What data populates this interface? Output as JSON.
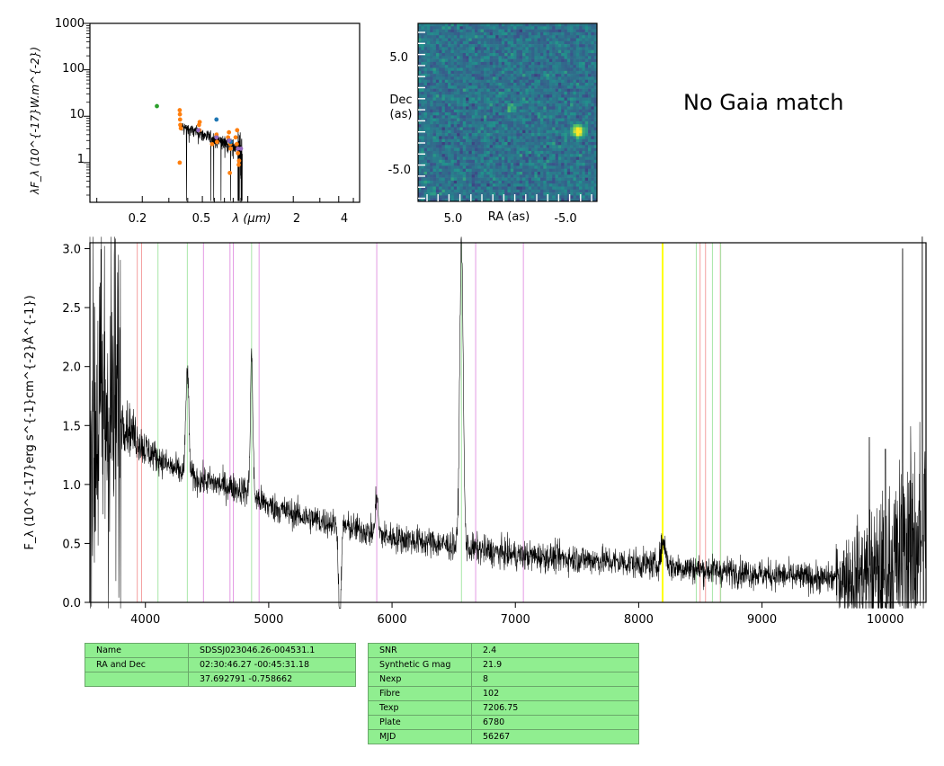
{
  "sed": {
    "ylabel": "λF_λ (10^{-17}W.m^{-2})",
    "xlabel": "λ (μm)",
    "ytick_labels": [
      "1000",
      "100",
      "10",
      "1"
    ],
    "xtick_labels": [
      "0.2",
      "0.5",
      "2",
      "4"
    ],
    "points_green": [
      [
        0.25,
        16.5
      ]
    ],
    "points_orange": [
      [
        0.354,
        1.0
      ],
      [
        0.354,
        13.5
      ],
      [
        0.355,
        11.0
      ],
      [
        0.356,
        8.5
      ],
      [
        0.357,
        6.5
      ],
      [
        0.36,
        5.5
      ],
      [
        0.475,
        6.5
      ],
      [
        0.478,
        5.0
      ],
      [
        0.48,
        7.5
      ],
      [
        0.58,
        2.5
      ],
      [
        0.62,
        4.0
      ],
      [
        0.625,
        2.8
      ],
      [
        0.74,
        3.5
      ],
      [
        0.75,
        4.5
      ],
      [
        0.76,
        0.6
      ],
      [
        0.765,
        2.5
      ],
      [
        0.77,
        2.0
      ],
      [
        0.83,
        3.5
      ],
      [
        0.845,
        2.5
      ],
      [
        0.85,
        5.0
      ],
      [
        0.86,
        1.6
      ],
      [
        0.87,
        0.9
      ],
      [
        0.875,
        1.1
      ]
    ],
    "points_blue": [
      [
        0.62,
        8.5
      ],
      [
        0.77,
        2.8
      ]
    ],
    "points_purple": [
      [
        0.47,
        5.0
      ],
      [
        0.62,
        3.5
      ],
      [
        0.75,
        3.0
      ],
      [
        0.86,
        2.0
      ],
      [
        0.9,
        2.0
      ]
    ]
  },
  "image": {
    "ylabel_line1": "Dec",
    "ylabel_line2": "(as)",
    "xlabel": "RA (as)",
    "ytick_labels": [
      "5.0",
      "-5.0"
    ],
    "xtick_labels": [
      "5.0",
      "-5.0"
    ]
  },
  "gaia_text": "No Gaia match",
  "chart_data": {
    "type": "line",
    "xlabel": "",
    "ylabel": "F_λ (10^{-17}erg s^{-1}cm^{-2}Å^{-1})",
    "xlim": [
      3550,
      10330
    ],
    "ylim": [
      0.0,
      3.05
    ],
    "xticks": [
      4000,
      5000,
      6000,
      7000,
      8000,
      9000,
      10000
    ],
    "yticks": [
      "0.0",
      "0.5",
      "1.0",
      "1.5",
      "2.0",
      "2.5",
      "3.0"
    ],
    "continuum_anchors": [
      [
        3550,
        1.5
      ],
      [
        3700,
        1.65
      ],
      [
        3850,
        1.5
      ],
      [
        4000,
        1.3
      ],
      [
        4200,
        1.15
      ],
      [
        4400,
        1.05
      ],
      [
        4600,
        1.0
      ],
      [
        4800,
        0.95
      ],
      [
        5000,
        0.82
      ],
      [
        5300,
        0.72
      ],
      [
        5600,
        0.65
      ],
      [
        6000,
        0.55
      ],
      [
        6500,
        0.48
      ],
      [
        7000,
        0.4
      ],
      [
        7500,
        0.37
      ],
      [
        8000,
        0.33
      ],
      [
        8500,
        0.28
      ],
      [
        9000,
        0.24
      ],
      [
        9500,
        0.2
      ],
      [
        10000,
        0.25
      ],
      [
        10330,
        0.6
      ]
    ],
    "emission_features": [
      [
        4340,
        0.9,
        12
      ],
      [
        4861,
        1.2,
        10
      ],
      [
        5876,
        0.35,
        10
      ],
      [
        6563,
        2.6,
        14
      ],
      [
        8200,
        0.2,
        20
      ]
    ],
    "absorption_features": [
      [
        5577,
        0.9,
        10
      ]
    ],
    "spike_features": [
      [
        10140,
        2.5
      ],
      [
        10300,
        2.7
      ],
      [
        10000,
        0.8
      ],
      [
        9870,
        0.9
      ]
    ],
    "line_markers": [
      {
        "x": 3934,
        "color": "#f4a0a0"
      },
      {
        "x": 3969,
        "color": "#f4a0a0"
      },
      {
        "x": 4102,
        "color": "#a8e6a8"
      },
      {
        "x": 4340,
        "color": "#a8e6a8"
      },
      {
        "x": 4471,
        "color": "#e49ae4"
      },
      {
        "x": 4686,
        "color": "#e49ae4"
      },
      {
        "x": 4713,
        "color": "#e49ae4"
      },
      {
        "x": 4861,
        "color": "#a8e6a8"
      },
      {
        "x": 4922,
        "color": "#e49ae4"
      },
      {
        "x": 5876,
        "color": "#e49ae4"
      },
      {
        "x": 6563,
        "color": "#a8e6a8"
      },
      {
        "x": 6678,
        "color": "#e49ae4"
      },
      {
        "x": 7065,
        "color": "#e49ae4"
      },
      {
        "x": 8194,
        "color": "#ffff00"
      },
      {
        "x": 8467,
        "color": "#a8e6a8"
      },
      {
        "x": 8498,
        "color": "#f4a0a0"
      },
      {
        "x": 8542,
        "color": "#f4a0a0"
      },
      {
        "x": 8598,
        "color": "#a8e6a8"
      },
      {
        "x": 8662,
        "color": "#f4a0a0"
      },
      {
        "x": 8665,
        "color": "#a8e6a8"
      }
    ]
  },
  "table_left": {
    "rows": [
      {
        "label": "Name",
        "value": "SDSSJ023046.26-004531.1"
      },
      {
        "label": "RA and Dec",
        "value": "02:30:46.27    -00:45:31.18"
      },
      {
        "label": "",
        "value": "37.692791    -0.758662"
      }
    ]
  },
  "table_right": {
    "rows": [
      {
        "label": "SNR",
        "value": "2.4"
      },
      {
        "label": "Synthetic G mag",
        "value": "21.9"
      },
      {
        "label": "Nexp",
        "value": "8"
      },
      {
        "label": "Fibre",
        "value": "102"
      },
      {
        "label": "Texp",
        "value": "7206.75"
      },
      {
        "label": "Plate",
        "value": "6780"
      },
      {
        "label": "MJD",
        "value": "56267"
      }
    ]
  }
}
